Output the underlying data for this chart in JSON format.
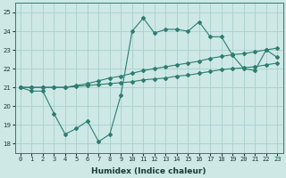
{
  "xlabel": "Humidex (Indice chaleur)",
  "ylabel": "",
  "background_color": "#cde8e5",
  "grid_color": "#aacfcc",
  "line_color": "#2d7d72",
  "x_values": [
    0,
    1,
    2,
    3,
    4,
    5,
    6,
    7,
    8,
    9,
    10,
    11,
    12,
    13,
    14,
    15,
    16,
    17,
    18,
    19,
    20,
    21,
    22,
    23
  ],
  "y_top": [
    21.0,
    21.0,
    21.0,
    21.0,
    21.0,
    21.1,
    21.2,
    21.35,
    21.5,
    21.6,
    21.75,
    21.9,
    22.0,
    22.1,
    22.2,
    22.3,
    22.4,
    22.55,
    22.65,
    22.75,
    22.8,
    22.9,
    23.0,
    23.1
  ],
  "y_mid": [
    21.0,
    21.0,
    21.0,
    21.0,
    21.0,
    21.05,
    21.1,
    21.15,
    21.2,
    21.25,
    21.3,
    21.4,
    21.45,
    21.5,
    21.6,
    21.65,
    21.75,
    21.85,
    21.95,
    22.0,
    22.05,
    22.1,
    22.2,
    22.3
  ],
  "y_bot": [
    21.0,
    20.8,
    20.8,
    19.6,
    18.5,
    18.8,
    19.2,
    18.1,
    18.5,
    20.6,
    24.0,
    24.7,
    23.9,
    24.1,
    24.1,
    24.0,
    24.5,
    23.7,
    23.7,
    22.7,
    22.0,
    21.9,
    23.0,
    22.6
  ],
  "ylim": [
    17.5,
    25.5
  ],
  "yticks": [
    18,
    19,
    20,
    21,
    22,
    23,
    24,
    25
  ],
  "xticks": [
    0,
    1,
    2,
    3,
    4,
    5,
    6,
    7,
    8,
    9,
    10,
    11,
    12,
    13,
    14,
    15,
    16,
    17,
    18,
    19,
    20,
    21,
    22,
    23
  ],
  "markersize": 2.0,
  "linewidth": 0.8
}
